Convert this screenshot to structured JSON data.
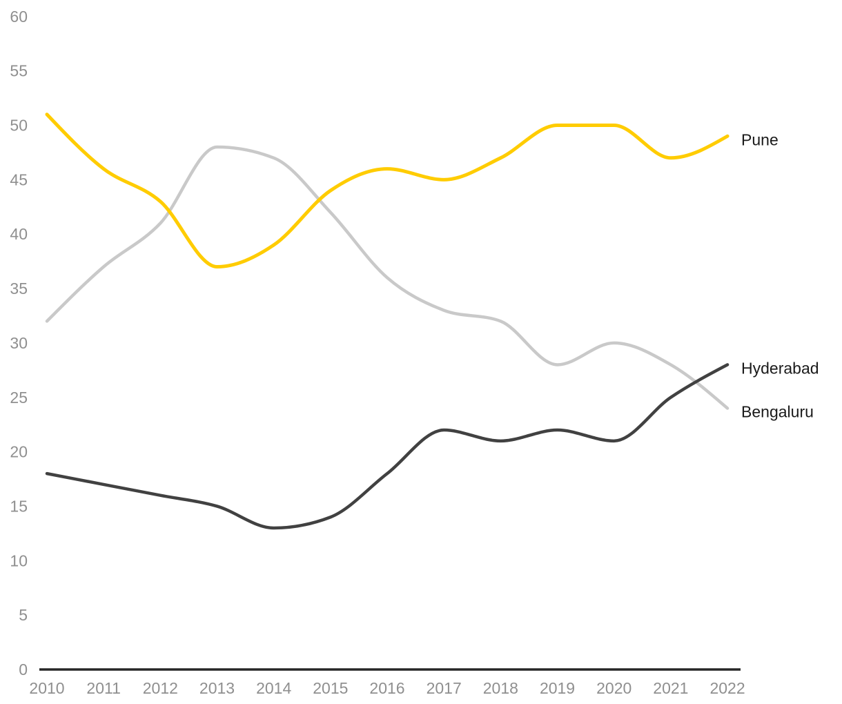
{
  "chart_data": {
    "type": "line",
    "x": [
      2010,
      2011,
      2012,
      2013,
      2014,
      2015,
      2016,
      2017,
      2018,
      2019,
      2020,
      2021,
      2022
    ],
    "xticks": [
      "2010",
      "2011",
      "2012",
      "2013",
      "2014",
      "2015",
      "2016",
      "2017",
      "2018",
      "2019",
      "2020",
      "2021",
      "2022"
    ],
    "yticks": [
      0,
      5,
      10,
      15,
      20,
      25,
      30,
      35,
      40,
      45,
      50,
      55,
      60
    ],
    "ylim": [
      0,
      60
    ],
    "grid": false,
    "legend_position": "direct-labels-at-line-end",
    "curve": "monotone",
    "series": [
      {
        "name": "Bengaluru",
        "color": "#C9C9C9",
        "stroke_width": 4.5,
        "values": [
          32,
          37,
          41,
          48,
          47,
          42,
          36,
          33,
          32,
          28,
          30,
          28,
          24
        ]
      },
      {
        "name": "Hyderabad",
        "color": "#414141",
        "stroke_width": 4.5,
        "values": [
          18,
          17,
          16,
          15,
          13,
          14,
          18,
          22,
          21,
          22,
          21,
          25,
          28
        ]
      },
      {
        "name": "Pune",
        "color": "#FFCC00",
        "stroke_width": 5,
        "values": [
          51,
          46,
          43,
          37,
          39,
          44,
          46,
          45,
          47,
          50,
          50,
          47,
          49
        ]
      }
    ],
    "axis_line_color": "#262626",
    "tick_label_color": "#8F8F8F",
    "series_label_color": "#1A1A1A",
    "background_color": "#FFFFFF"
  }
}
